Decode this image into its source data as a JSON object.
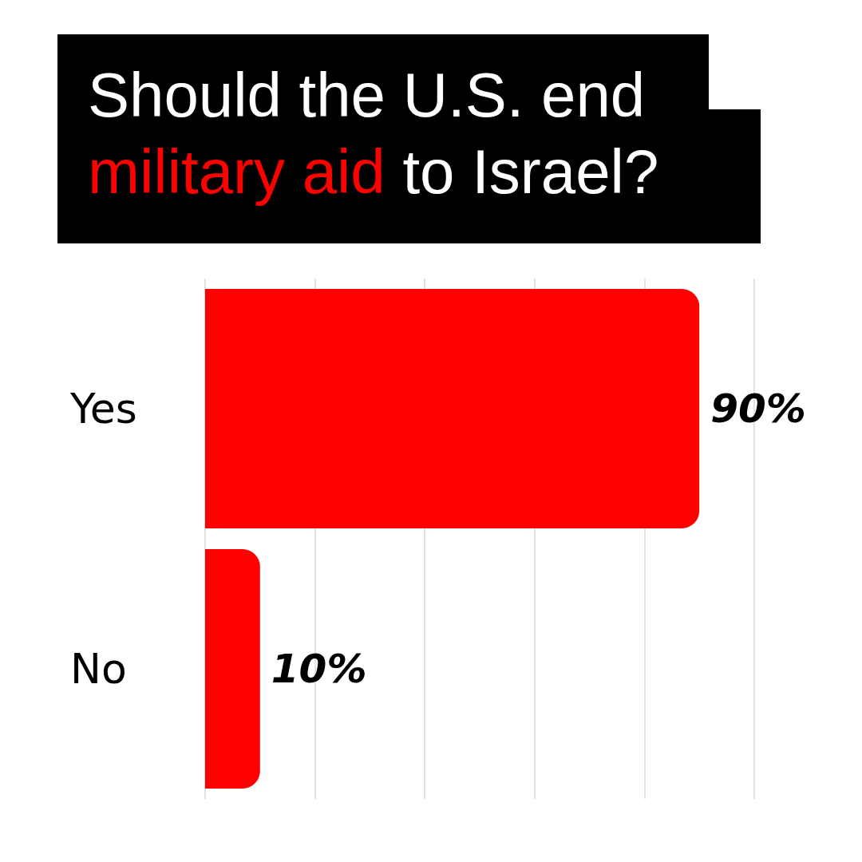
{
  "chart_data": {
    "type": "bar",
    "orientation": "horizontal",
    "title": "Should the U.S. end military aid to Israel?",
    "categories": [
      "Yes",
      "No"
    ],
    "values": [
      90,
      10
    ],
    "color": "#ff0000",
    "value_labels": [
      "90%",
      "10%"
    ],
    "xlim": [
      0,
      100
    ],
    "xticks": [
      {
        "value": 0,
        "label": null
      },
      {
        "value": 20,
        "label": null
      },
      {
        "value": 40,
        "label": null
      },
      {
        "value": 60,
        "label": null
      },
      {
        "value": 80,
        "label": null
      },
      {
        "value": 100,
        "label": null
      }
    ],
    "grid": "x",
    "tick_labels": "y"
  }
}
